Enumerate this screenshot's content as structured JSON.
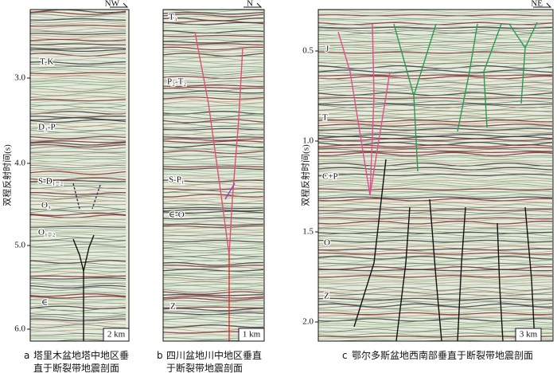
{
  "axis_label": "双程反射时间(s)",
  "panels": [
    {
      "direction": "NW",
      "ticks": [
        "3.0",
        "4.0",
        "5.0",
        "6.0"
      ],
      "units": [
        "T-K",
        "D₃-P",
        "S-D₁₋₂",
        "O₃",
        "O₁₋₂",
        "∈"
      ],
      "scale": "2 km",
      "caption": {
        "label": "a",
        "text": "塔里木盆地塔中地区垂直于断裂带地震剖面"
      }
    },
    {
      "direction": "N",
      "units": [
        "T₃",
        "P₂-T₂",
        "S-P₁",
        "∈-O",
        "Z"
      ],
      "scale": "1 km",
      "caption": {
        "label": "b",
        "text": "四川盆地川中地区垂直于断裂带地震剖面"
      }
    },
    {
      "direction": "NE",
      "ticks": [
        "0.5",
        "1.0",
        "1.5",
        "2.0"
      ],
      "units": [
        "J",
        "T",
        "C+P",
        "O",
        "Z"
      ],
      "scale": "3 km",
      "caption": {
        "label": "c",
        "text": "鄂尔多斯盆地西南部垂直于断裂带地震剖面"
      }
    }
  ]
}
